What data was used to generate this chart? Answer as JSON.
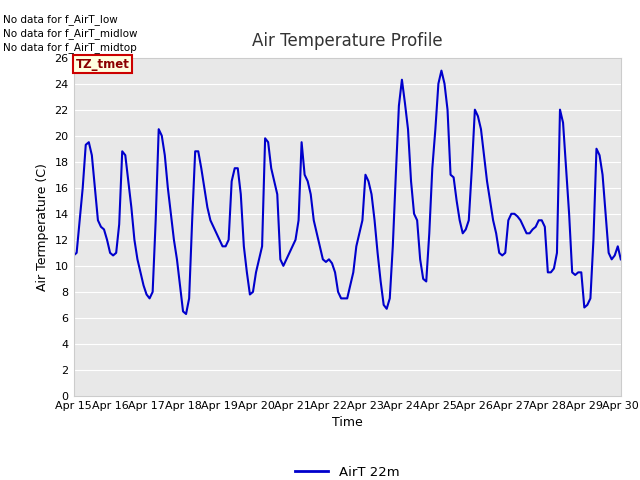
{
  "title": "Air Temperature Profile",
  "xlabel": "Time",
  "ylabel": "Air Termperature (C)",
  "legend_label": "AirT 22m",
  "annotations": [
    "No data for f_AirT_low",
    "No data for f_AirT_midlow",
    "No data for f_AirT_midtop"
  ],
  "tz_label": "TZ_tmet",
  "line_color": "#0000cc",
  "ylim": [
    0,
    26
  ],
  "yticks": [
    0,
    2,
    4,
    6,
    8,
    10,
    12,
    14,
    16,
    18,
    20,
    22,
    24,
    26
  ],
  "bg_color": "#e8e8e8",
  "plot_bg": "#e8e8e8",
  "x_labels": [
    "Apr 15",
    "Apr 16",
    "Apr 17",
    "Apr 18",
    "Apr 19",
    "Apr 20",
    "Apr 21",
    "Apr 22",
    "Apr 23",
    "Apr 24",
    "Apr 25",
    "Apr 26",
    "Apr 27",
    "Apr 28",
    "Apr 29",
    "Apr 30"
  ],
  "x_positions": [
    0,
    1,
    2,
    3,
    4,
    5,
    6,
    7,
    8,
    9,
    10,
    11,
    12,
    13,
    14,
    15
  ],
  "time_data": [
    0.0,
    0.083,
    0.167,
    0.25,
    0.333,
    0.417,
    0.5,
    0.583,
    0.667,
    0.75,
    0.833,
    0.917,
    1.0,
    1.083,
    1.167,
    1.25,
    1.333,
    1.417,
    1.5,
    1.583,
    1.667,
    1.75,
    1.833,
    1.917,
    2.0,
    2.083,
    2.167,
    2.25,
    2.333,
    2.417,
    2.5,
    2.583,
    2.667,
    2.75,
    2.833,
    2.917,
    3.0,
    3.083,
    3.167,
    3.25,
    3.333,
    3.417,
    3.5,
    3.583,
    3.667,
    3.75,
    3.833,
    3.917,
    4.0,
    4.083,
    4.167,
    4.25,
    4.333,
    4.417,
    4.5,
    4.583,
    4.667,
    4.75,
    4.833,
    4.917,
    5.0,
    5.083,
    5.167,
    5.25,
    5.333,
    5.417,
    5.5,
    5.583,
    5.667,
    5.75,
    5.833,
    5.917,
    6.0,
    6.083,
    6.167,
    6.25,
    6.333,
    6.417,
    6.5,
    6.583,
    6.667,
    6.75,
    6.833,
    6.917,
    7.0,
    7.083,
    7.167,
    7.25,
    7.333,
    7.417,
    7.5,
    7.583,
    7.667,
    7.75,
    7.833,
    7.917,
    8.0,
    8.083,
    8.167,
    8.25,
    8.333,
    8.417,
    8.5,
    8.583,
    8.667,
    8.75,
    8.833,
    8.917,
    9.0,
    9.083,
    9.167,
    9.25,
    9.333,
    9.417,
    9.5,
    9.583,
    9.667,
    9.75,
    9.833,
    9.917,
    10.0,
    10.083,
    10.167,
    10.25,
    10.333,
    10.417,
    10.5,
    10.583,
    10.667,
    10.75,
    10.833,
    10.917,
    11.0,
    11.083,
    11.167,
    11.25,
    11.333,
    11.417,
    11.5,
    11.583,
    11.667,
    11.75,
    11.833,
    11.917,
    12.0,
    12.083,
    12.167,
    12.25,
    12.333,
    12.417,
    12.5,
    12.583,
    12.667,
    12.75,
    12.833,
    12.917,
    13.0,
    13.083,
    13.167,
    13.25,
    13.333,
    13.417,
    13.5,
    13.583,
    13.667,
    13.75,
    13.833,
    13.917,
    14.0,
    14.083,
    14.167,
    14.25,
    14.333,
    14.417,
    14.5,
    14.583,
    14.667,
    14.75,
    14.833,
    14.917,
    15.0
  ],
  "temp_data": [
    10.8,
    11.0,
    13.5,
    16.0,
    19.3,
    19.5,
    18.5,
    16.0,
    13.5,
    13.0,
    12.8,
    12.0,
    11.0,
    10.8,
    11.0,
    13.2,
    18.8,
    18.5,
    16.5,
    14.5,
    12.0,
    10.5,
    9.5,
    8.5,
    7.8,
    7.5,
    8.0,
    13.5,
    20.5,
    20.0,
    18.5,
    16.0,
    14.0,
    12.0,
    10.5,
    8.5,
    6.5,
    6.3,
    7.5,
    13.5,
    18.8,
    18.8,
    17.5,
    16.0,
    14.5,
    13.5,
    13.0,
    12.5,
    12.0,
    11.5,
    11.5,
    12.0,
    16.5,
    17.5,
    17.5,
    15.5,
    11.5,
    9.5,
    7.8,
    8.0,
    9.5,
    10.5,
    11.5,
    19.8,
    19.5,
    17.5,
    16.5,
    15.5,
    10.5,
    10.0,
    10.5,
    11.0,
    11.5,
    12.0,
    13.5,
    19.5,
    17.0,
    16.5,
    15.5,
    13.5,
    12.5,
    11.5,
    10.5,
    10.3,
    10.5,
    10.2,
    9.5,
    8.0,
    7.5,
    7.5,
    7.5,
    8.5,
    9.5,
    11.5,
    12.5,
    13.5,
    17.0,
    16.5,
    15.5,
    13.5,
    11.0,
    8.8,
    7.0,
    6.7,
    7.5,
    11.5,
    17.0,
    22.3,
    24.3,
    22.5,
    20.5,
    16.5,
    14.0,
    13.5,
    10.5,
    9.0,
    8.8,
    12.5,
    17.5,
    20.5,
    24.0,
    25.0,
    24.0,
    22.0,
    17.0,
    16.8,
    15.0,
    13.5,
    12.5,
    12.8,
    13.5,
    17.5,
    22.0,
    21.5,
    20.5,
    18.5,
    16.5,
    15.0,
    13.5,
    12.5,
    11.0,
    10.8,
    11.0,
    13.5,
    14.0,
    14.0,
    13.8,
    13.5,
    13.0,
    12.5,
    12.5,
    12.8,
    13.0,
    13.5,
    13.5,
    13.0,
    9.5,
    9.5,
    9.8,
    11.0,
    22.0,
    21.0,
    17.5,
    14.0,
    9.5,
    9.3,
    9.5,
    9.5,
    6.8,
    7.0,
    7.5,
    12.0,
    19.0,
    18.5,
    17.0,
    14.0,
    11.0,
    10.5,
    10.8,
    11.5,
    10.5
  ]
}
